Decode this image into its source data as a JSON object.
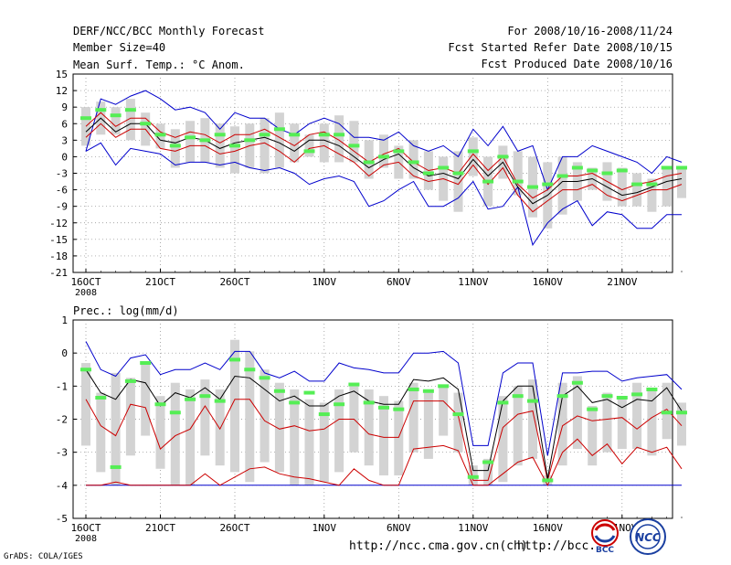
{
  "header": {
    "title": "DERF/NCC/BCC Monthly Forecast",
    "member_size": "Member Size=40",
    "period": "For 2008/10/16-2008/11/24",
    "started": "Fcst Started Refer Date 2008/10/15",
    "produced": "Fcst Produced Date 2008/10/16"
  },
  "footer": {
    "grads": "GrADS: COLA/IGES",
    "url1": "http://ncc.cma.gov.cn(ch)",
    "url2": "http://bcc.",
    "logo1": "BCC",
    "logo2": "NCC"
  },
  "colors": {
    "envelope": "#0000cc",
    "quartile": "#cc0000",
    "median": "#000000",
    "box": "#d3d3d3",
    "marker": "#55ee55",
    "grid": "#888888"
  },
  "chart_data": [
    {
      "type": "box-line",
      "title": "Mean Surf. Temp.: °C Anom.",
      "xlabel": "",
      "ylabel": "",
      "ylim": [
        -21,
        15
      ],
      "yticks": [
        15,
        12,
        9,
        6,
        3,
        0,
        -3,
        -6,
        -9,
        -12,
        -15,
        -18,
        -21
      ],
      "ytick_labels": [
        "15",
        "12",
        "9",
        "6",
        "3",
        "0",
        "-3",
        "-6",
        "-9",
        "-12",
        "-15",
        "-18",
        "-21"
      ],
      "x_tick_labels": [
        {
          "day": 1,
          "label": "16OCT",
          "sub": "2008"
        },
        {
          "day": 6,
          "label": "21OCT"
        },
        {
          "day": 11,
          "label": "26OCT"
        },
        {
          "day": 17,
          "label": "1NOV"
        },
        {
          "day": 22,
          "label": "6NOV"
        },
        {
          "day": 27,
          "label": "11NOV"
        },
        {
          "day": 32,
          "label": "16NOV"
        },
        {
          "day": 37,
          "label": "21NOV"
        }
      ],
      "grid": true,
      "series": [
        {
          "name": "max",
          "values": [
            1,
            10.5,
            9.5,
            11,
            12,
            10.5,
            8.5,
            9,
            8,
            5,
            8,
            7,
            7,
            5,
            4,
            6,
            7,
            6,
            3.5,
            3.5,
            3,
            4.5,
            2,
            1,
            2,
            0,
            5,
            2,
            5.5,
            1,
            2,
            -6,
            0,
            0,
            2,
            1,
            0,
            -1,
            -3,
            0,
            -1
          ]
        },
        {
          "name": "p75",
          "values": [
            5.5,
            8,
            5.5,
            7,
            7,
            4.5,
            3.5,
            4.5,
            4,
            2.5,
            4,
            4,
            5,
            3.5,
            2,
            4,
            4.5,
            3,
            1,
            -1,
            0.5,
            1.5,
            -1,
            -2.5,
            -2,
            -3,
            0.5,
            -2.5,
            0,
            -5,
            -7.5,
            -6,
            -3.5,
            -3.5,
            -3,
            -4.5,
            -6,
            -5,
            -4.5,
            -3.5,
            -3
          ]
        },
        {
          "name": "median",
          "values": [
            4.5,
            7,
            4.5,
            6,
            6,
            3,
            2.5,
            3.5,
            3,
            1.5,
            2.5,
            3,
            3.5,
            2.5,
            1,
            3,
            3,
            2,
            0,
            -2,
            -0.5,
            0.5,
            -2,
            -3.5,
            -3,
            -4,
            -0.5,
            -3.5,
            -1,
            -5.5,
            -8.5,
            -7,
            -4.5,
            -4.5,
            -4,
            -5.5,
            -7,
            -6.5,
            -5.5,
            -4.5,
            -4
          ]
        },
        {
          "name": "p25",
          "values": [
            3.5,
            6,
            3.5,
            5,
            5,
            1.5,
            1,
            2,
            2,
            0.5,
            1,
            2,
            2.5,
            1,
            -1,
            1.5,
            2,
            0.5,
            -1,
            -3.5,
            -1.5,
            -1,
            -3.5,
            -4.5,
            -4,
            -5,
            -1.5,
            -5,
            -2,
            -7,
            -10,
            -8,
            -6,
            -6,
            -5,
            -7,
            -8,
            -7,
            -6,
            -6,
            -5
          ]
        },
        {
          "name": "min",
          "values": [
            1,
            2.5,
            -1.5,
            1.5,
            1,
            0.5,
            -1.5,
            -1,
            -1,
            -1.5,
            -1,
            -2,
            -2.5,
            -2,
            -3,
            -5,
            -4,
            -3.5,
            -4.5,
            -9,
            -8,
            -6,
            -4.5,
            -9,
            -9,
            -7.5,
            -4.5,
            -9.5,
            -9,
            -5.5,
            -16,
            -12,
            -9.5,
            -8,
            -12.5,
            -10,
            -10.5,
            -13,
            -13,
            -10.5,
            -10.5
          ]
        },
        {
          "name": "box_hi",
          "values": [
            9,
            10,
            9,
            10.5,
            8,
            6,
            5,
            6.5,
            7,
            6,
            5.5,
            6,
            7,
            8,
            6,
            4,
            6,
            7.5,
            6.5,
            3,
            4,
            2,
            3,
            1,
            0,
            1,
            3.5,
            0,
            2,
            1,
            0,
            -1,
            0,
            -1,
            -2,
            -1,
            -2,
            -3,
            -4,
            -2,
            -2
          ]
        },
        {
          "name": "box_lo",
          "values": [
            2,
            4,
            4,
            3,
            2,
            1.5,
            -2,
            -1,
            -1,
            -2,
            -3,
            -2,
            -3,
            -2,
            -1,
            0,
            -1,
            -1,
            -1,
            -4,
            -2,
            -4,
            -4,
            -6,
            -8,
            -10,
            -3.5,
            -9,
            -4,
            -7,
            -11,
            -13,
            -10.5,
            -8,
            -6,
            -8,
            -9,
            -9,
            -10,
            -9,
            -7.5
          ]
        },
        {
          "name": "marker",
          "values": [
            7,
            8.5,
            7.5,
            8.5,
            6,
            4,
            2,
            3.5,
            3,
            4,
            2,
            3,
            4,
            5,
            4,
            1,
            4,
            4,
            2,
            -1,
            0,
            1,
            -1,
            -3,
            -2,
            -3,
            1,
            -4.5,
            0,
            -4.5,
            -5.5,
            -5,
            -3.5,
            -2,
            -2.5,
            -3,
            -2.5,
            -5,
            -5,
            -2,
            -2
          ]
        }
      ]
    },
    {
      "type": "box-line",
      "title": "Prec.: log(mm/d)",
      "xlabel": "",
      "ylabel": "",
      "ylim": [
        -5,
        1
      ],
      "yticks": [
        1,
        0,
        -1,
        -2,
        -3,
        -4,
        -5
      ],
      "ytick_labels": [
        "1",
        "0",
        "-1",
        "-2",
        "-3",
        "-4",
        "-5"
      ],
      "x_tick_labels": [
        {
          "day": 1,
          "label": "16OCT",
          "sub": "2008"
        },
        {
          "day": 6,
          "label": "21OCT"
        },
        {
          "day": 11,
          "label": "26OCT"
        },
        {
          "day": 17,
          "label": "1NOV"
        },
        {
          "day": 22,
          "label": "6NOV"
        },
        {
          "day": 27,
          "label": "11NOV"
        },
        {
          "day": 32,
          "label": "16NOV"
        },
        {
          "day": 37,
          "label": "21NOV"
        }
      ],
      "grid": true,
      "series": [
        {
          "name": "max",
          "values": [
            0.35,
            -0.5,
            -0.7,
            -0.15,
            -0.05,
            -0.65,
            -0.5,
            -0.5,
            -0.3,
            -0.5,
            0.05,
            0.05,
            -0.6,
            -0.75,
            -0.55,
            -0.85,
            -0.85,
            -0.3,
            -0.45,
            -0.5,
            -0.6,
            -0.6,
            0,
            0,
            0.05,
            -0.3,
            -2.8,
            -2.8,
            -0.6,
            -0.3,
            -0.3,
            -3.1,
            -0.6,
            -0.6,
            -0.55,
            -0.55,
            -0.85,
            -0.75,
            -0.7,
            -0.65,
            -1.1
          ]
        },
        {
          "name": "median",
          "values": [
            -0.5,
            -1.2,
            -1.4,
            -0.8,
            -0.9,
            -1.6,
            -1.2,
            -1.35,
            -1.05,
            -1.4,
            -0.7,
            -0.75,
            -1.1,
            -1.45,
            -1.3,
            -1.6,
            -1.6,
            -1.3,
            -1.15,
            -1.45,
            -1.55,
            -1.55,
            -0.8,
            -0.85,
            -0.75,
            -1.1,
            -3.55,
            -3.55,
            -1.45,
            -1.0,
            -1.0,
            -3.8,
            -1.3,
            -1.0,
            -1.5,
            -1.4,
            -1.65,
            -1.4,
            -1.45,
            -1.05,
            -1.75
          ]
        },
        {
          "name": "p25",
          "values": [
            -1.4,
            -2.2,
            -2.5,
            -1.55,
            -1.65,
            -2.9,
            -2.5,
            -2.3,
            -1.6,
            -2.3,
            -1.4,
            -1.4,
            -2.05,
            -2.3,
            -2.2,
            -2.35,
            -2.3,
            -2.0,
            -2.0,
            -2.45,
            -2.55,
            -2.55,
            -1.45,
            -1.45,
            -1.45,
            -1.9,
            -3.85,
            -3.85,
            -2.25,
            -1.85,
            -1.75,
            -3.85,
            -2.2,
            -1.9,
            -2.05,
            -2.0,
            -1.95,
            -2.3,
            -1.95,
            -1.7,
            -2.2
          ]
        },
        {
          "name": "p10",
          "values": [
            -4,
            -4,
            -3.9,
            -4,
            -4,
            -4,
            -4,
            -4,
            -3.65,
            -4,
            -3.75,
            -3.5,
            -3.45,
            -3.65,
            -3.75,
            -3.8,
            -3.9,
            -4,
            -3.5,
            -3.85,
            -4,
            -4,
            -2.9,
            -2.85,
            -2.8,
            -2.95,
            -4,
            -4,
            -3.65,
            -3.3,
            -3.15,
            -4,
            -3.0,
            -2.6,
            -3.1,
            -2.75,
            -3.35,
            -2.85,
            -3.0,
            -2.85,
            -3.5
          ]
        },
        {
          "name": "min",
          "values": [
            -4,
            -4,
            -4,
            -4,
            -4,
            -4,
            -4,
            -4,
            -4,
            -4,
            -4,
            -4,
            -4,
            -4,
            -4,
            -4,
            -4,
            -4,
            -4,
            -4,
            -4,
            -4,
            -4,
            -4,
            -4,
            -4,
            -4,
            -4,
            -4,
            -4,
            -4,
            -4,
            -4,
            -4,
            -4,
            -4,
            -4,
            -4,
            -4,
            -4,
            -4
          ]
        },
        {
          "name": "box_hi",
          "values": [
            -0.3,
            -1.2,
            -0.6,
            -0.75,
            -0.3,
            -1.3,
            -0.9,
            -1.1,
            -0.8,
            -1.1,
            0.4,
            0.05,
            -0.5,
            -0.9,
            -1.1,
            -1.4,
            -1.5,
            -1.1,
            -1.0,
            -1.1,
            -1.3,
            -1.45,
            -0.9,
            -1.1,
            -1.0,
            -1.2,
            -3.4,
            -3.2,
            -1.3,
            -1.0,
            -0.8,
            -3.7,
            -0.9,
            -0.7,
            -1.6,
            -1.2,
            -1.3,
            -0.9,
            -1.1,
            -0.9,
            -1.5
          ]
        },
        {
          "name": "box_lo",
          "values": [
            -2.8,
            -3.6,
            -4,
            -3.1,
            -2.5,
            -3.5,
            -4,
            -4,
            -3.1,
            -3.4,
            -3.6,
            -3.9,
            -3.3,
            -3.6,
            -4,
            -4,
            -3.9,
            -3.6,
            -3.0,
            -3.4,
            -3.7,
            -3.7,
            -3.0,
            -3.2,
            -2.5,
            -3.0,
            -4,
            -4,
            -3.9,
            -3.4,
            -3.2,
            -4,
            -3.4,
            -2.9,
            -3.4,
            -3.0,
            -2.9,
            -2.9,
            -3.1,
            -2.6,
            -2.8
          ]
        },
        {
          "name": "marker",
          "values": [
            -0.5,
            -1.35,
            -3.45,
            -0.85,
            -0.3,
            -1.55,
            -1.8,
            -1.4,
            -1.3,
            -1.45,
            -0.2,
            -0.5,
            -0.75,
            -1.15,
            -1.5,
            -1.2,
            -1.85,
            -1.55,
            -0.95,
            -1.5,
            -1.65,
            -1.7,
            -1.1,
            -1.15,
            -1.0,
            -1.85,
            -3.75,
            -3.3,
            -1.5,
            -1.3,
            -1.45,
            -3.85,
            -1.3,
            -0.9,
            -1.7,
            -1.3,
            -1.35,
            -1.25,
            -1.1,
            -1.8,
            -1.8
          ]
        }
      ]
    }
  ]
}
